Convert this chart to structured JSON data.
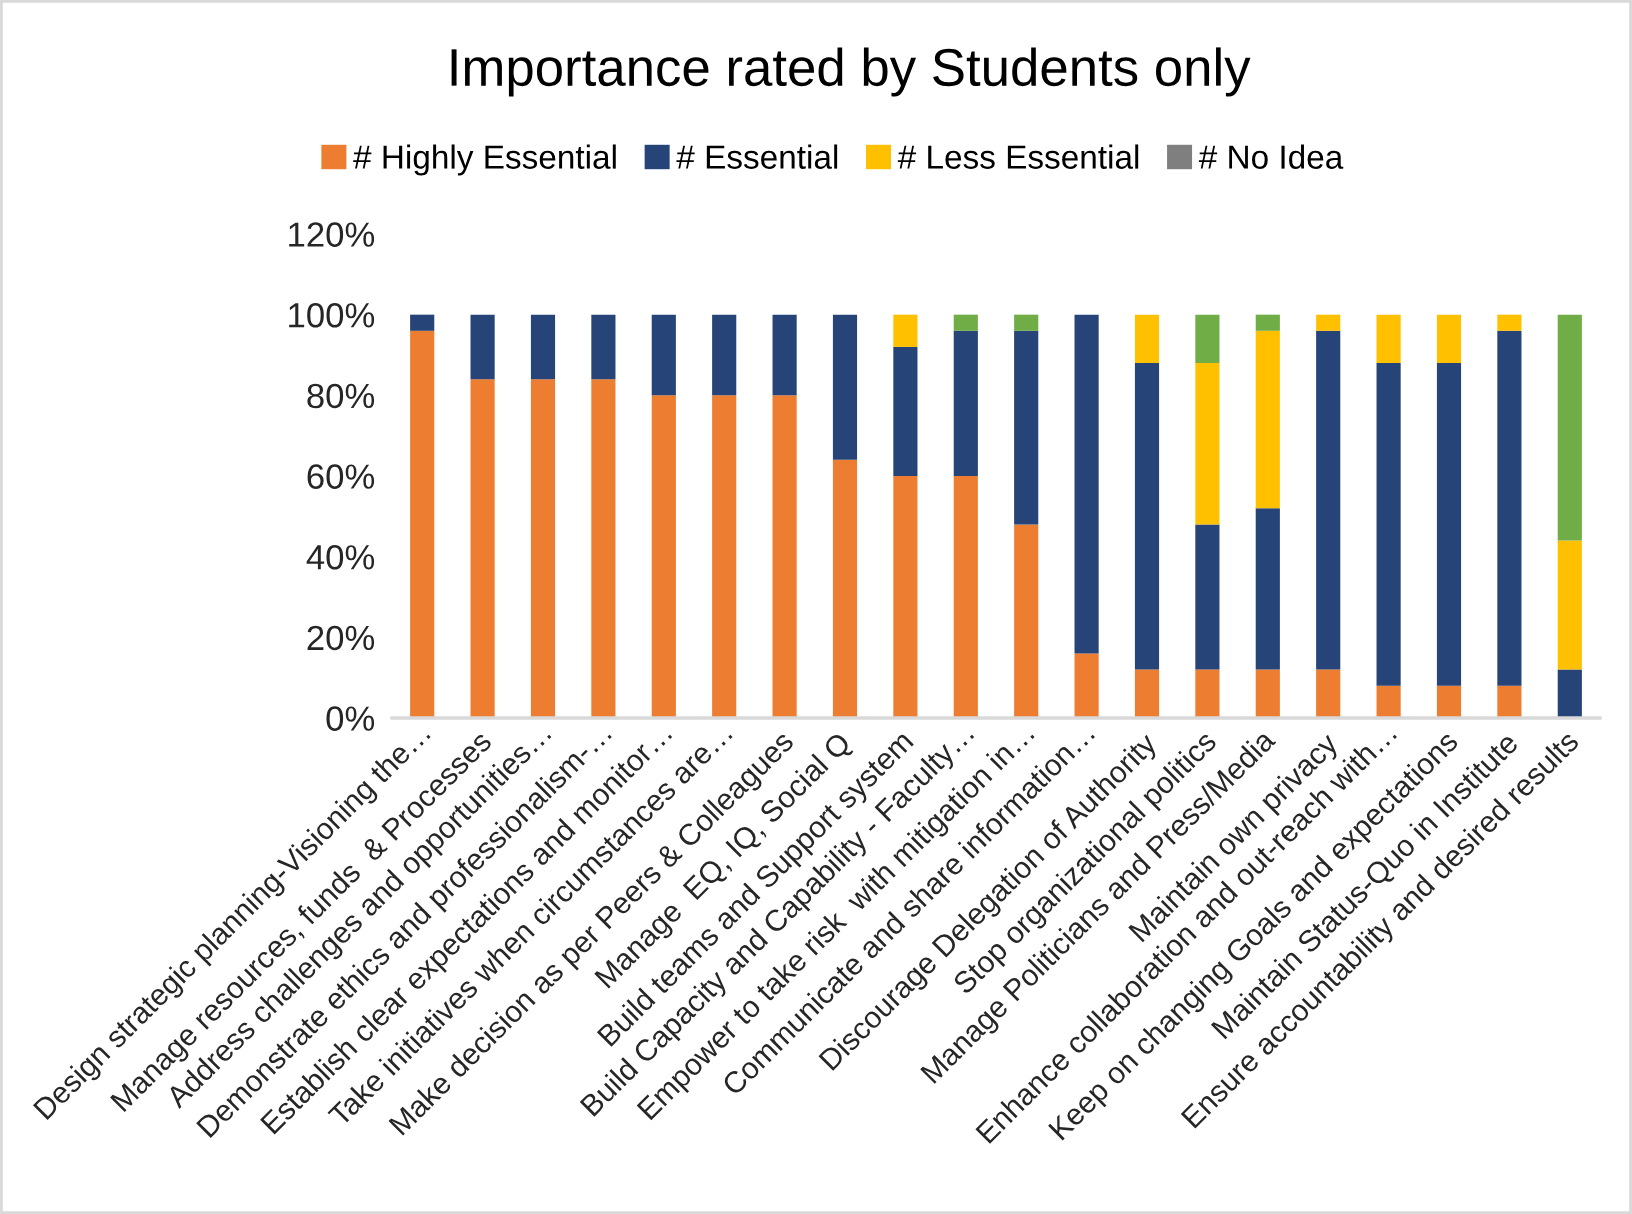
{
  "chart_data": {
    "type": "bar",
    "title": "Importance rated by Students only",
    "stacked": true,
    "legend": "top",
    "categories": [
      "Design strategic planning-Visioning the…",
      "Manage resources, funds  & Processes",
      "Address challenges and opportunities…",
      "Demonstrate ethics and professionalism-…",
      "Establish clear expectations and monitor…",
      "Take initiatives when circumstances are…",
      "Make decision as per Peers & Colleagues",
      "Manage  EQ, IQ, Social Q",
      "Build teams and Support system",
      "Build Capacity and Capability - Faculty…",
      "Empower to take risk  with mitigation in…",
      "Communicate and share information…",
      "Discourage Delegation of Authority",
      "Stop organizational politics",
      "Manage Politicians and Press/Media",
      "Maintain own privacy",
      "Enhance collaboration and out-reach with…",
      "Keep on changing Goals and expectations",
      "Maintain Status-Quo in Institute",
      "Ensure accountability and desired results"
    ],
    "series": [
      {
        "name": "# Highly Essential",
        "color": "#ed7d31",
        "values": [
          96,
          84,
          84,
          84,
          80,
          80,
          80,
          64,
          60,
          60,
          48,
          16,
          12,
          12,
          12,
          12,
          8,
          8,
          8,
          0
        ]
      },
      {
        "name": "# Essential",
        "color": "#264478",
        "values": [
          4,
          16,
          16,
          16,
          20,
          20,
          20,
          36,
          32,
          36,
          48,
          84,
          76,
          36,
          40,
          84,
          80,
          80,
          88,
          12
        ]
      },
      {
        "name": "# Less Essential",
        "color": "#ffc000",
        "values": [
          null,
          null,
          null,
          null,
          null,
          null,
          null,
          null,
          8,
          null,
          null,
          null,
          12,
          40,
          44,
          4,
          12,
          12,
          4,
          32
        ]
      },
      {
        "name": "# No Idea",
        "color": "#7f7f7f",
        "values": [
          null,
          null,
          null,
          null,
          null,
          null,
          null,
          null,
          null,
          null,
          null,
          null,
          null,
          null,
          null,
          null,
          null,
          null,
          null,
          null
        ]
      },
      {
        "color": "#70ad47",
        "values": [
          null,
          null,
          null,
          null,
          null,
          null,
          null,
          null,
          null,
          4,
          4,
          null,
          null,
          12,
          4,
          null,
          null,
          null,
          null,
          56
        ]
      }
    ],
    "ylim": [
      0,
      120
    ],
    "yticks": [
      {
        "value": 0,
        "label": "0%"
      },
      {
        "value": 20,
        "label": "20%"
      },
      {
        "value": 40,
        "label": "40%"
      },
      {
        "value": 60,
        "label": "60%"
      },
      {
        "value": 80,
        "label": "80%"
      },
      {
        "value": 100,
        "label": "100%"
      },
      {
        "value": 120,
        "label": "120%"
      }
    ]
  }
}
